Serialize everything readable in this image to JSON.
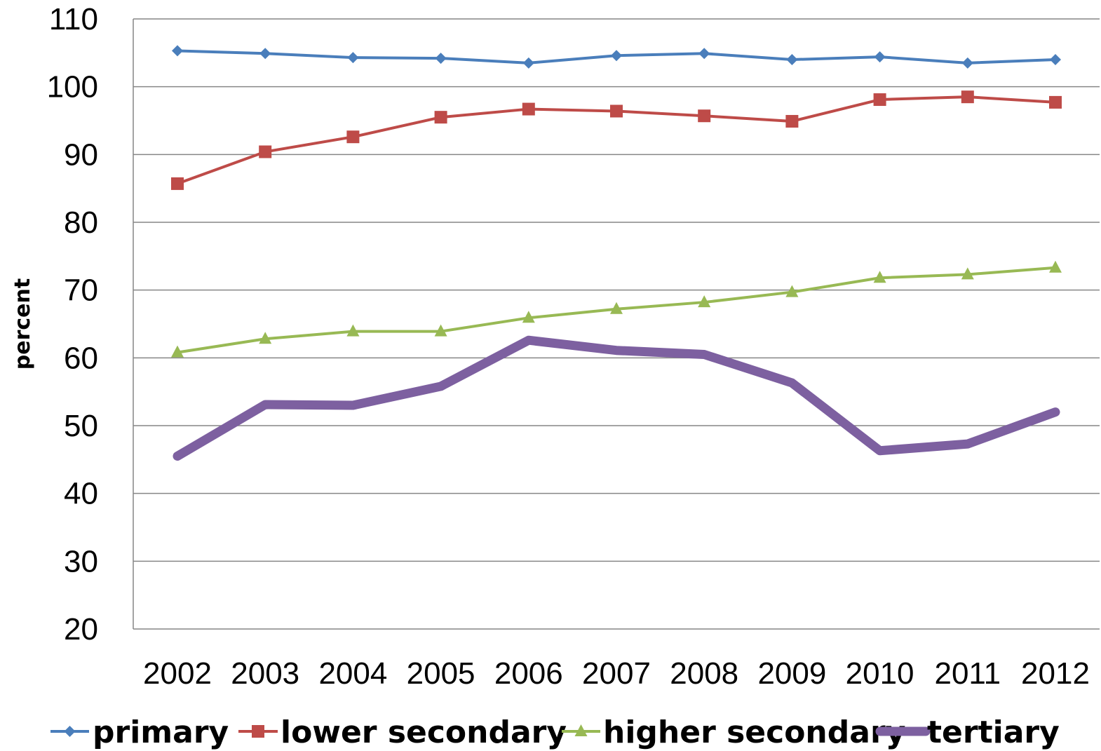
{
  "chart_data": {
    "type": "line",
    "title": "",
    "xlabel": "",
    "ylabel": "percent",
    "ylim": [
      20,
      110
    ],
    "yticks": [
      20,
      30,
      40,
      50,
      60,
      70,
      80,
      90,
      100,
      110
    ],
    "categories": [
      "2002",
      "2003",
      "2004",
      "2005",
      "2006",
      "2007",
      "2008",
      "2009",
      "2010",
      "2011",
      "2012"
    ],
    "grid": "horizontal",
    "legend_position": "bottom",
    "series": [
      {
        "name": "primary",
        "color": "#4a7ebb",
        "marker": "diamond",
        "line_style": "thin",
        "values": [
          105.3,
          104.9,
          104.3,
          104.2,
          103.5,
          104.6,
          104.9,
          104.0,
          104.4,
          103.5,
          104.0
        ]
      },
      {
        "name": "lower secondary",
        "color": "#be4b48",
        "marker": "square",
        "line_style": "thin",
        "values": [
          85.7,
          90.4,
          92.6,
          95.5,
          96.7,
          96.4,
          95.7,
          94.9,
          98.1,
          98.5,
          97.7
        ]
      },
      {
        "name": "higher secondary",
        "color": "#98b954",
        "marker": "triangle",
        "line_style": "thin",
        "values": [
          60.8,
          62.8,
          63.9,
          63.9,
          65.9,
          67.2,
          68.2,
          69.7,
          71.8,
          72.3,
          73.3
        ]
      },
      {
        "name": "tertiary",
        "color": "#7d60a0",
        "marker": "none",
        "line_style": "thick",
        "values": [
          45.5,
          53.1,
          53.0,
          55.8,
          62.6,
          61.1,
          60.5,
          56.3,
          46.3,
          47.3,
          52.0
        ]
      }
    ]
  }
}
